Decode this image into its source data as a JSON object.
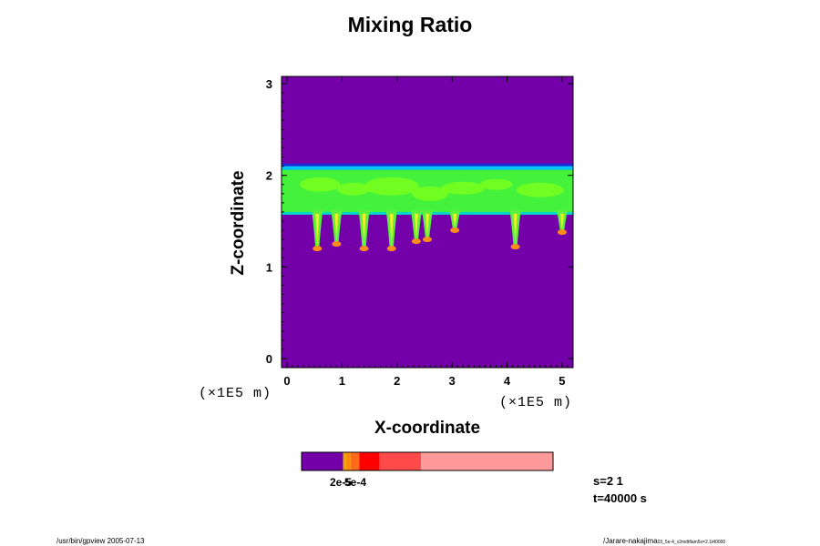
{
  "chart_data": {
    "type": "heatmap",
    "title": "Mixing Ratio",
    "xlabel": "X-coordinate",
    "ylabel": "Z-coordinate",
    "x_unit": "(×1E5 m)",
    "y_unit": "(×1E5 m)",
    "x_ticks": [
      0,
      1,
      2,
      3,
      4,
      5
    ],
    "y_ticks": [
      0,
      1,
      2,
      3
    ],
    "xlim": [
      -0.1,
      5.2
    ],
    "ylim": [
      -0.1,
      3.08
    ],
    "background_color": "#7300a8",
    "cloud_layer": {
      "z_top": 2.1,
      "z_base": 1.6
    },
    "plumes": [
      {
        "x": 0.55,
        "z_bottom": 1.2
      },
      {
        "x": 0.9,
        "z_bottom": 1.25
      },
      {
        "x": 1.4,
        "z_bottom": 1.2
      },
      {
        "x": 1.9,
        "z_bottom": 1.2
      },
      {
        "x": 2.35,
        "z_bottom": 1.28
      },
      {
        "x": 2.55,
        "z_bottom": 1.3
      },
      {
        "x": 3.05,
        "z_bottom": 1.4
      },
      {
        "x": 4.15,
        "z_bottom": 1.22
      },
      {
        "x": 5.0,
        "z_bottom": 1.38
      }
    ],
    "colorbar": {
      "colors": [
        "#7300a8",
        "#e6a800",
        "#ff8c00",
        "#ff6a1a",
        "#ff0000",
        "#ff4a4a",
        "#ff9a9a"
      ],
      "fractions": [
        0.165,
        0.01,
        0.02,
        0.035,
        0.08,
        0.165,
        0.525
      ],
      "labels": [
        "2e-5",
        "5e-4"
      ]
    }
  },
  "run_info": {
    "s": "s=2 1",
    "t": "t=40000 s"
  },
  "footer": {
    "left": "/usr/bin/gpview 2005-07-13",
    "right_main": "/Jarare-nakajima",
    "right_small": "03_5e-4_v2mdtflam5s=2.1t40000"
  }
}
